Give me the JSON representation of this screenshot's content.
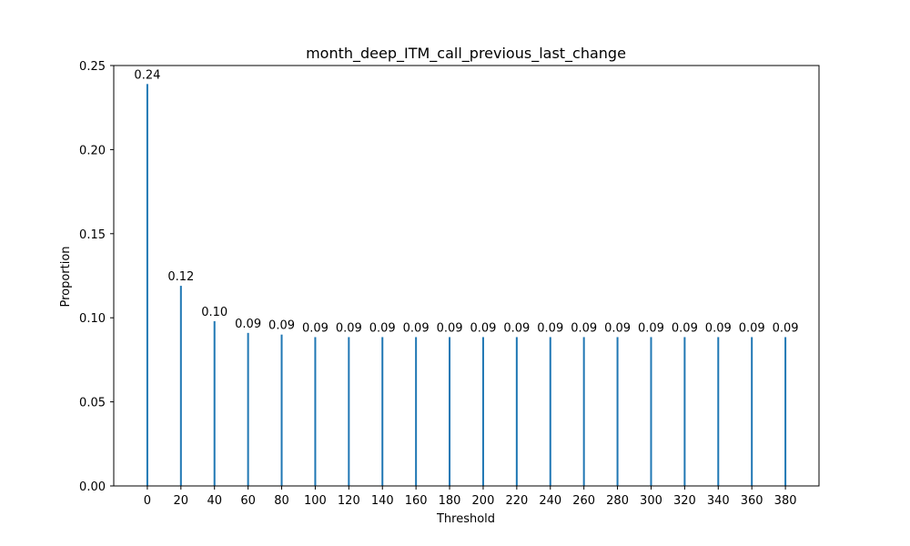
{
  "chart_data": {
    "type": "bar",
    "title": "month_deep_ITM_call_previous_last_change",
    "xlabel": "Threshold",
    "ylabel": "Proportion",
    "categories": [
      0,
      20,
      40,
      60,
      80,
      100,
      120,
      140,
      160,
      180,
      200,
      220,
      240,
      260,
      280,
      300,
      320,
      340,
      360,
      380
    ],
    "values": [
      0.239,
      0.119,
      0.098,
      0.091,
      0.09,
      0.0885,
      0.0885,
      0.0885,
      0.0885,
      0.0885,
      0.0885,
      0.0885,
      0.0885,
      0.0885,
      0.0885,
      0.0885,
      0.0885,
      0.0885,
      0.0885,
      0.0885
    ],
    "value_labels": [
      "0.24",
      "0.12",
      "0.10",
      "0.09",
      "0.09",
      "0.09",
      "0.09",
      "0.09",
      "0.09",
      "0.09",
      "0.09",
      "0.09",
      "0.09",
      "0.09",
      "0.09",
      "0.09",
      "0.09",
      "0.09",
      "0.09",
      "0.09"
    ],
    "x_ticks": [
      "0",
      "20",
      "40",
      "60",
      "80",
      "100",
      "120",
      "140",
      "160",
      "180",
      "200",
      "220",
      "240",
      "260",
      "280",
      "300",
      "320",
      "340",
      "360",
      "380"
    ],
    "y_ticks": [
      "0.00",
      "0.05",
      "0.10",
      "0.15",
      "0.20",
      "0.25"
    ],
    "y_tick_values": [
      0,
      0.05,
      0.1,
      0.15,
      0.2,
      0.25
    ],
    "xlim": [
      -20,
      400
    ],
    "ylim": [
      0,
      0.25
    ],
    "grid": false,
    "bar_color": "#1f77b4"
  }
}
